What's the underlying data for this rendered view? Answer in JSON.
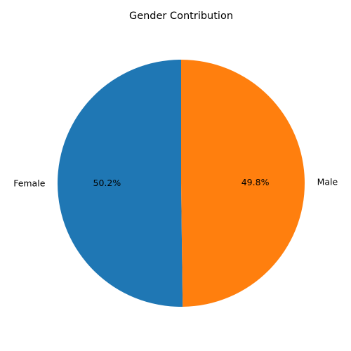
{
  "chart_data": {
    "type": "pie",
    "title": "Gender Contribution",
    "labels": [
      "Female",
      "Male"
    ],
    "values": [
      50.2,
      49.8
    ],
    "percent_labels": [
      "50.2%",
      "49.8%"
    ],
    "colors": [
      "#1f77b4",
      "#ff7f0e"
    ],
    "start_angle_deg": 90,
    "direction": "counterclockwise",
    "legend": "none"
  }
}
